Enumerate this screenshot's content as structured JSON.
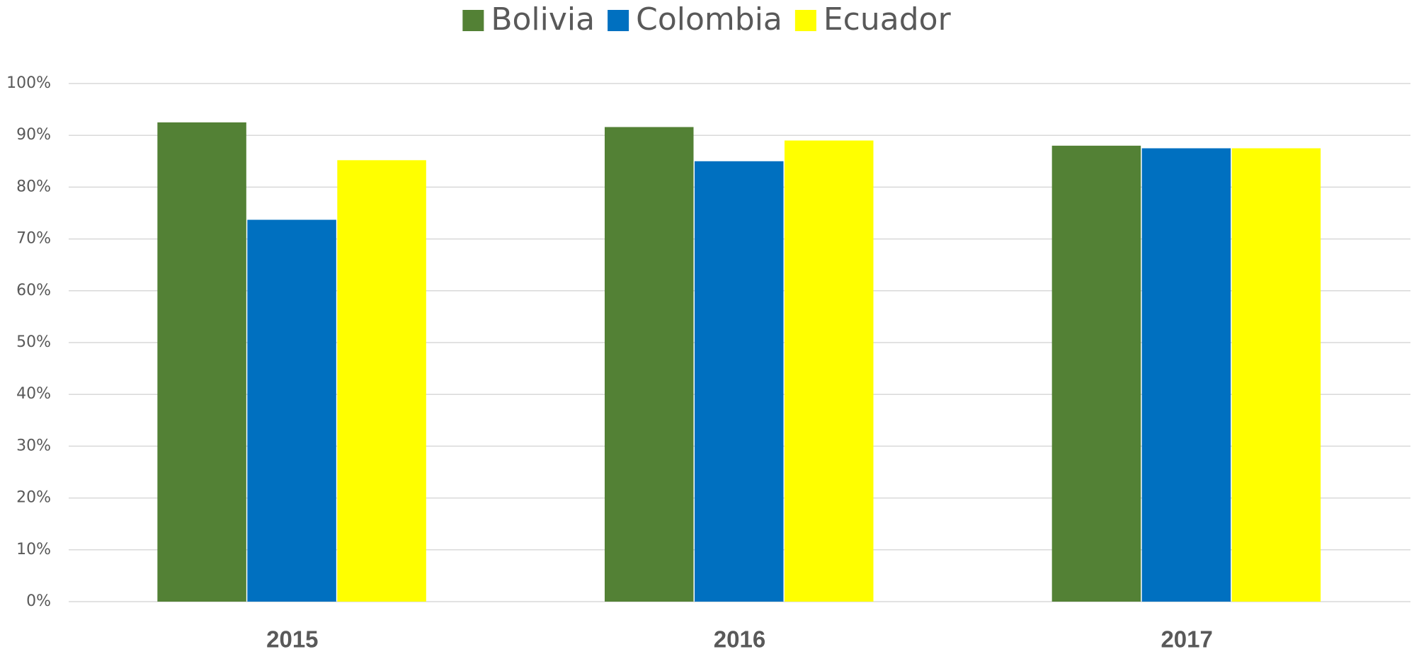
{
  "chart_data": {
    "type": "bar",
    "categories": [
      "2015",
      "2016",
      "2017"
    ],
    "series": [
      {
        "name": "Bolivia",
        "color": "#538135",
        "values": [
          92.5,
          91.6,
          88.0
        ]
      },
      {
        "name": "Colombia",
        "color": "#0070c0",
        "values": [
          73.7,
          85.0,
          87.5
        ]
      },
      {
        "name": "Ecuador",
        "color": "#ffff00",
        "values": [
          85.2,
          89.0,
          87.5
        ]
      }
    ],
    "ylim": [
      0,
      100
    ],
    "yticks": [
      {
        "value": 0,
        "label": "0%"
      },
      {
        "value": 10,
        "label": "10%"
      },
      {
        "value": 20,
        "label": "20%"
      },
      {
        "value": 30,
        "label": "30%"
      },
      {
        "value": 40,
        "label": "40%"
      },
      {
        "value": 50,
        "label": "50%"
      },
      {
        "value": 60,
        "label": "60%"
      },
      {
        "value": 70,
        "label": "70%"
      },
      {
        "value": 80,
        "label": "80%"
      },
      {
        "value": 90,
        "label": "90%"
      },
      {
        "value": 100,
        "label": "100%"
      }
    ],
    "grid": true,
    "legend": "top"
  }
}
